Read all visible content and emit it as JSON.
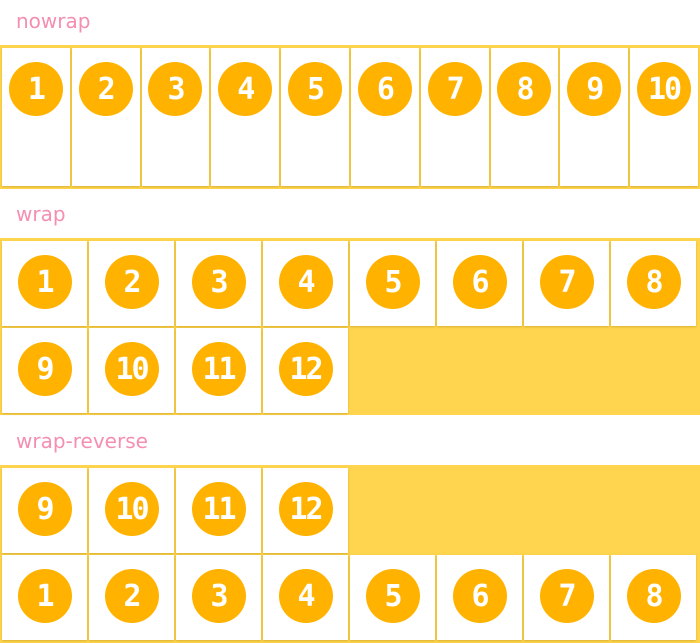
{
  "colors": {
    "container": "#ffd54f",
    "circle": "#ffb300",
    "label": "#f48fb1"
  },
  "sections": [
    {
      "label": "nowrap",
      "items": [
        "1",
        "2",
        "3",
        "4",
        "5",
        "6",
        "7",
        "8",
        "9",
        "10"
      ]
    },
    {
      "label": "wrap",
      "items": [
        "1",
        "2",
        "3",
        "4",
        "5",
        "6",
        "7",
        "8",
        "9",
        "10",
        "11",
        "12"
      ]
    },
    {
      "label": "wrap-reverse",
      "items": [
        "1",
        "2",
        "3",
        "4",
        "5",
        "6",
        "7",
        "8",
        "9",
        "10",
        "11",
        "12"
      ]
    }
  ]
}
